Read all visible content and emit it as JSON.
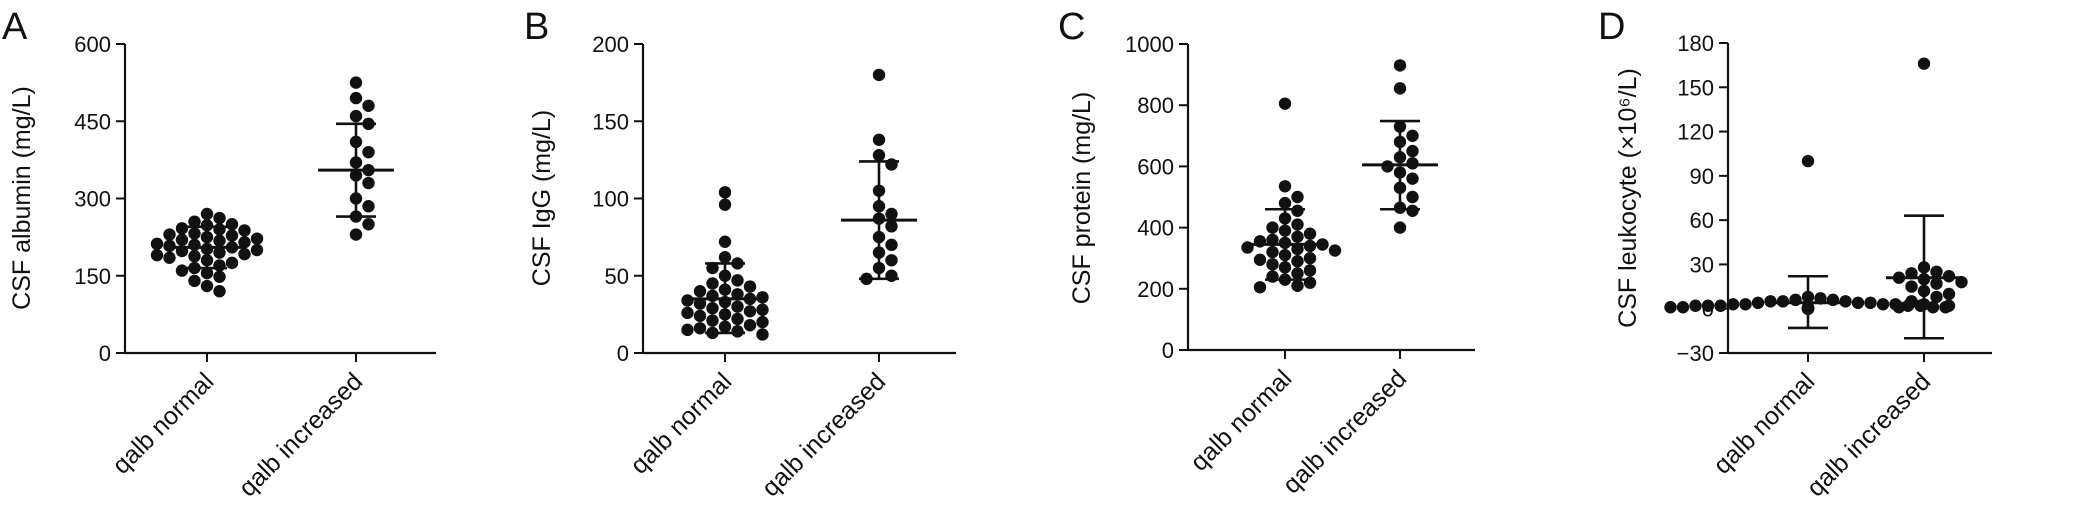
{
  "chart_data": [
    {
      "type": "scatter",
      "panel_label": "A",
      "title": "",
      "xlabel": "",
      "ylabel": "CSF albumin (mg/L)",
      "ylim": [
        0,
        600
      ],
      "yticks": [
        "0",
        "150",
        "300",
        "450",
        "600"
      ],
      "ytick_values": [
        0,
        150,
        300,
        450,
        600
      ],
      "categories": [
        "qalb normal",
        "qalb increased"
      ],
      "series": [
        {
          "values": [
            270,
            262,
            255,
            250,
            248,
            242,
            240,
            238,
            232,
            230,
            228,
            225,
            222,
            220,
            218,
            215,
            212,
            210,
            208,
            205,
            202,
            200,
            198,
            195,
            192,
            190,
            188,
            185,
            180,
            175,
            170,
            165,
            160,
            155,
            148,
            140,
            130,
            120
          ],
          "mean": 205,
          "sd_low": 165,
          "sd_high": 245
        },
        {
          "values": [
            525,
            495,
            480,
            460,
            445,
            410,
            390,
            370,
            355,
            345,
            330,
            300,
            285,
            265,
            250,
            230
          ],
          "mean": 355,
          "sd_low": 265,
          "sd_high": 445
        }
      ]
    },
    {
      "type": "scatter",
      "panel_label": "B",
      "title": "",
      "xlabel": "",
      "ylabel": "CSF IgG (mg/L)",
      "ylim": [
        0,
        200
      ],
      "yticks": [
        "0",
        "50",
        "100",
        "150",
        "200"
      ],
      "ytick_values": [
        0,
        50,
        100,
        150,
        200
      ],
      "categories": [
        "qalb normal",
        "qalb increased"
      ],
      "series": [
        {
          "values": [
            104,
            96,
            72,
            62,
            58,
            55,
            50,
            47,
            45,
            43,
            41,
            40,
            38,
            37,
            36,
            35,
            34,
            33,
            32,
            30,
            29,
            28,
            27,
            26,
            25,
            24,
            22,
            21,
            20,
            18,
            17,
            16,
            15,
            14,
            13,
            12
          ],
          "mean": 35,
          "sd_low": 13,
          "sd_high": 58
        },
        {
          "values": [
            180,
            138,
            128,
            122,
            105,
            95,
            90,
            87,
            82,
            75,
            70,
            65,
            60,
            55,
            50,
            48
          ],
          "mean": 86,
          "sd_low": 48,
          "sd_high": 124
        }
      ]
    },
    {
      "type": "scatter",
      "panel_label": "C",
      "title": "",
      "xlabel": "",
      "ylabel": "CSF protein (mg/L)",
      "ylim": [
        0,
        1000
      ],
      "yticks": [
        "0",
        "200",
        "400",
        "600",
        "800",
        "1000"
      ],
      "ytick_values": [
        0,
        200,
        400,
        600,
        800,
        1000
      ],
      "categories": [
        "qalb normal",
        "qalb increased"
      ],
      "series": [
        {
          "values": [
            805,
            535,
            500,
            480,
            455,
            430,
            410,
            400,
            390,
            380,
            370,
            360,
            355,
            350,
            345,
            340,
            335,
            330,
            325,
            320,
            310,
            300,
            295,
            290,
            280,
            270,
            260,
            250,
            240,
            230,
            220,
            210,
            205
          ],
          "mean": 345,
          "sd_low": 230,
          "sd_high": 460
        },
        {
          "values": [
            930,
            855,
            730,
            700,
            680,
            650,
            630,
            610,
            600,
            580,
            560,
            530,
            500,
            465,
            455,
            400
          ],
          "mean": 605,
          "sd_low": 460,
          "sd_high": 748
        }
      ]
    },
    {
      "type": "scatter",
      "panel_label": "D",
      "title": "",
      "xlabel": "",
      "ylabel": "CSF leukocyte (×10⁶/L)",
      "ylim": [
        -30,
        180
      ],
      "yticks": [
        "−30",
        "0",
        "30",
        "60",
        "90",
        "120",
        "150",
        "180"
      ],
      "ytick_values": [
        -30,
        0,
        30,
        60,
        90,
        120,
        150,
        180
      ],
      "categories": [
        "qalb normal",
        "qalb increased"
      ],
      "series": [
        {
          "values": [
            100,
            8,
            7,
            6,
            6,
            5,
            5,
            5,
            4,
            4,
            4,
            3,
            3,
            3,
            3,
            2,
            2,
            2,
            2,
            2,
            1,
            1,
            1,
            1,
            1,
            0,
            0,
            0,
            0,
            0,
            0,
            0,
            0,
            0
          ],
          "mean": 4,
          "sd_low": -13,
          "sd_high": 22
        },
        {
          "values": [
            166,
            28,
            25,
            24,
            22,
            21,
            20,
            18,
            17,
            15,
            12,
            10,
            8,
            5,
            3,
            2,
            1
          ],
          "mean": 21,
          "sd_low": -20,
          "sd_high": 63
        }
      ]
    }
  ]
}
